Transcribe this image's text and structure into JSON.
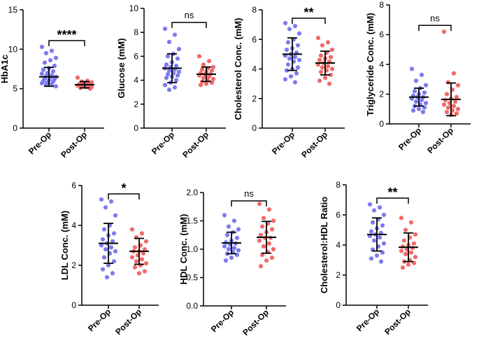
{
  "colors": {
    "pre": "#7b7bf0",
    "post": "#f06a6a",
    "axis": "#000000"
  },
  "chart_data": [
    {
      "type": "scatter",
      "ylabel": "HbA1c",
      "categories": [
        "Pre-Op",
        "Post-Op"
      ],
      "ylim": [
        0,
        15
      ],
      "yticks": [
        0,
        5,
        10,
        15
      ],
      "significance": "****",
      "series": [
        {
          "name": "Pre-Op",
          "mean": 6.5,
          "sd": 1.2,
          "values": [
            10.3,
            9.8,
            9.5,
            8.9,
            8.6,
            8.3,
            7.9,
            7.6,
            7.4,
            7.2,
            7.0,
            6.9,
            6.7,
            6.6,
            6.5,
            6.4,
            6.3,
            6.2,
            6.1,
            6.0,
            5.9,
            5.8,
            5.7,
            5.6,
            5.5,
            5.3
          ]
        },
        {
          "name": "Post-Op",
          "mean": 5.5,
          "sd": 0.4,
          "values": [
            6.4,
            6.0,
            5.9,
            5.8,
            5.7,
            5.7,
            5.6,
            5.6,
            5.5,
            5.5,
            5.4,
            5.4,
            5.3,
            5.3,
            5.2,
            5.2,
            5.1,
            5.0
          ]
        }
      ]
    },
    {
      "type": "scatter",
      "ylabel": "Glucose (mM)",
      "categories": [
        "Pre-Op",
        "Post-Op"
      ],
      "ylim": [
        0,
        10
      ],
      "yticks": [
        0,
        2,
        4,
        6,
        8,
        10
      ],
      "significance": "ns",
      "series": [
        {
          "name": "Pre-Op",
          "mean": 5.0,
          "sd": 1.2,
          "values": [
            8.3,
            7.8,
            7.2,
            6.6,
            6.2,
            6.0,
            5.8,
            5.5,
            5.3,
            5.2,
            5.1,
            5.0,
            4.9,
            4.8,
            4.7,
            4.6,
            4.5,
            4.4,
            4.3,
            4.2,
            4.0,
            3.8,
            3.6,
            3.4,
            3.2
          ]
        },
        {
          "name": "Post-Op",
          "mean": 4.5,
          "sd": 0.6,
          "values": [
            6.0,
            5.6,
            5.3,
            5.1,
            5.0,
            4.9,
            4.8,
            4.7,
            4.6,
            4.5,
            4.5,
            4.4,
            4.3,
            4.2,
            4.1,
            4.0,
            3.9,
            3.8,
            3.7,
            3.6
          ]
        }
      ]
    },
    {
      "type": "scatter",
      "ylabel": "Cholesterol Conc. (mM)",
      "categories": [
        "Pre-Op",
        "Post-Op"
      ],
      "ylim": [
        0,
        8
      ],
      "yticks": [
        0,
        2,
        4,
        6,
        8
      ],
      "significance": "**",
      "series": [
        {
          "name": "Pre-Op",
          "mean": 5.0,
          "sd": 1.1,
          "values": [
            7.1,
            6.9,
            6.7,
            6.4,
            6.0,
            5.8,
            5.6,
            5.4,
            5.3,
            5.1,
            5.0,
            4.9,
            4.8,
            4.7,
            4.6,
            4.5,
            4.3,
            4.1,
            4.0,
            3.9,
            3.7,
            3.5,
            3.3,
            3.1
          ]
        },
        {
          "name": "Post-Op",
          "mean": 4.4,
          "sd": 0.8,
          "values": [
            6.1,
            5.8,
            5.6,
            5.3,
            5.1,
            4.9,
            4.8,
            4.7,
            4.6,
            4.5,
            4.4,
            4.3,
            4.2,
            4.1,
            4.0,
            3.9,
            3.8,
            3.6,
            3.4,
            3.2,
            3.0
          ]
        }
      ]
    },
    {
      "type": "scatter",
      "ylabel": "Triglyceride Conc. (mM)",
      "categories": [
        "Pre-Op",
        "Post-Op"
      ],
      "ylim": [
        0,
        8
      ],
      "yticks": [
        0,
        2,
        4,
        6,
        8
      ],
      "significance": "ns",
      "series": [
        {
          "name": "Pre-Op",
          "mean": 1.8,
          "sd": 0.6,
          "values": [
            3.7,
            3.3,
            2.9,
            2.6,
            2.4,
            2.2,
            2.1,
            2.0,
            1.9,
            1.8,
            1.8,
            1.7,
            1.6,
            1.5,
            1.4,
            1.3,
            1.2,
            1.1,
            1.0,
            0.9,
            0.8
          ]
        },
        {
          "name": "Post-Op",
          "mean": 1.65,
          "sd": 1.1,
          "values": [
            6.2,
            3.4,
            2.8,
            2.6,
            2.3,
            2.0,
            1.8,
            1.7,
            1.6,
            1.5,
            1.4,
            1.3,
            1.2,
            1.1,
            1.0,
            0.9,
            0.8,
            0.7,
            0.6
          ]
        }
      ]
    },
    {
      "type": "scatter",
      "ylabel": "LDL Conc. (mM)",
      "categories": [
        "Pre-Op",
        "Post-Op"
      ],
      "ylim": [
        0,
        6
      ],
      "yticks": [
        0,
        2,
        4,
        6
      ],
      "significance": "*",
      "series": [
        {
          "name": "Pre-Op",
          "mean": 3.1,
          "sd": 1.0,
          "values": [
            5.3,
            5.2,
            4.9,
            4.5,
            4.0,
            3.8,
            3.6,
            3.5,
            3.3,
            3.2,
            3.1,
            3.0,
            2.9,
            2.8,
            2.7,
            2.6,
            2.4,
            2.2,
            2.0,
            1.8,
            1.6,
            1.4
          ]
        },
        {
          "name": "Post-Op",
          "mean": 2.7,
          "sd": 0.65,
          "values": [
            3.8,
            3.6,
            3.4,
            3.2,
            3.0,
            2.9,
            2.8,
            2.7,
            2.7,
            2.6,
            2.5,
            2.4,
            2.3,
            2.2,
            2.1,
            2.0,
            1.9,
            1.7,
            1.6
          ]
        }
      ]
    },
    {
      "type": "scatter",
      "ylabel": "HDL Conc. (mM)",
      "categories": [
        "Pre-Op",
        "Post-Op"
      ],
      "ylim": [
        0,
        2
      ],
      "yticks": [
        0.0,
        0.5,
        1.0,
        1.5,
        2.0
      ],
      "ytick_labels": [
        "0.0",
        "0.5",
        "1.0",
        "1.5",
        "2.0"
      ],
      "significance": "ns",
      "series": [
        {
          "name": "Pre-Op",
          "mean": 1.11,
          "sd": 0.19,
          "values": [
            1.6,
            1.5,
            1.4,
            1.35,
            1.3,
            1.25,
            1.2,
            1.15,
            1.12,
            1.1,
            1.08,
            1.05,
            1.02,
            1.0,
            0.98,
            0.95,
            0.92,
            0.9,
            0.85,
            0.8
          ]
        },
        {
          "name": "Post-Op",
          "mean": 1.21,
          "sd": 0.28,
          "values": [
            1.8,
            1.7,
            1.55,
            1.5,
            1.45,
            1.4,
            1.35,
            1.3,
            1.25,
            1.2,
            1.2,
            1.15,
            1.1,
            1.05,
            1.0,
            0.95,
            0.9,
            0.85,
            0.8,
            0.7
          ]
        }
      ]
    },
    {
      "type": "scatter",
      "ylabel": "Cholesterol:HDL Ratio",
      "categories": [
        "Pre-Op",
        "Post-Op"
      ],
      "ylim": [
        0,
        8
      ],
      "yticks": [
        0,
        2,
        4,
        6,
        8
      ],
      "significance": "**",
      "series": [
        {
          "name": "Pre-Op",
          "mean": 4.7,
          "sd": 1.1,
          "values": [
            6.7,
            6.5,
            6.3,
            6.0,
            5.7,
            5.5,
            5.3,
            5.1,
            4.9,
            4.8,
            4.7,
            4.6,
            4.5,
            4.3,
            4.1,
            3.9,
            3.7,
            3.5,
            3.3,
            3.1,
            2.9
          ]
        },
        {
          "name": "Post-Op",
          "mean": 3.85,
          "sd": 0.95,
          "values": [
            5.8,
            5.5,
            5.0,
            4.7,
            4.5,
            4.3,
            4.1,
            4.0,
            3.9,
            3.8,
            3.7,
            3.6,
            3.5,
            3.4,
            3.2,
            3.0,
            2.9,
            2.8,
            2.7,
            2.5
          ]
        }
      ]
    }
  ]
}
